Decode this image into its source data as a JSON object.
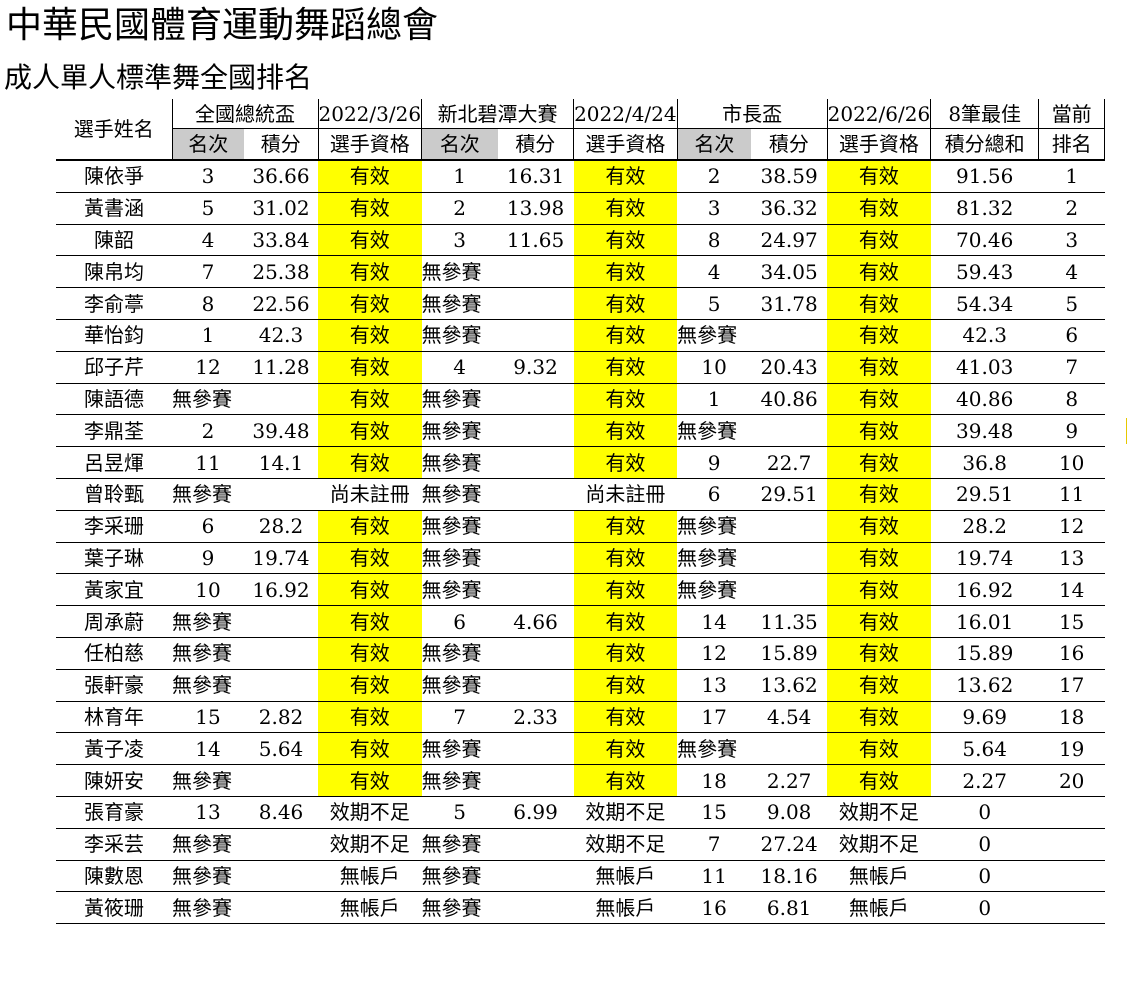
{
  "page": {
    "title": "中華民國體育運動舞蹈總會",
    "subtitle": "成人單人標準舞全國排名"
  },
  "headers": {
    "player_name": "選手姓名",
    "event1_name": "全國總統盃",
    "event1_date": "2022/3/26",
    "event2_name": "新北碧潭大賽",
    "event2_date": "2022/4/24",
    "event3_name": "市長盃",
    "event3_date": "2022/6/26",
    "best8": "8筆最佳",
    "current": "當前",
    "rank": "名次",
    "points": "積分",
    "eligibility": "選手資格",
    "total": "積分總和",
    "ranking": "排名"
  },
  "rows": [
    {
      "name": "陳依爭",
      "e1_rank": "3",
      "e1_pts": "36.66",
      "e1_status": "有效",
      "e2_rank": "1",
      "e2_pts": "16.31",
      "e2_status": "有效",
      "e3_rank": "2",
      "e3_pts": "38.59",
      "e3_status": "有效",
      "total": "91.56",
      "pos": "1"
    },
    {
      "name": "黃書涵",
      "e1_rank": "5",
      "e1_pts": "31.02",
      "e1_status": "有效",
      "e2_rank": "2",
      "e2_pts": "13.98",
      "e2_status": "有效",
      "e3_rank": "3",
      "e3_pts": "36.32",
      "e3_status": "有效",
      "total": "81.32",
      "pos": "2"
    },
    {
      "name": "陳韶",
      "e1_rank": "4",
      "e1_pts": "33.84",
      "e1_status": "有效",
      "e2_rank": "3",
      "e2_pts": "11.65",
      "e2_status": "有效",
      "e3_rank": "8",
      "e3_pts": "24.97",
      "e3_status": "有效",
      "total": "70.46",
      "pos": "3"
    },
    {
      "name": "陳帛均",
      "e1_rank": "7",
      "e1_pts": "25.38",
      "e1_status": "有效",
      "e2_rank": "無參賽",
      "e2_pts": "",
      "e2_status": "有效",
      "e3_rank": "4",
      "e3_pts": "34.05",
      "e3_status": "有效",
      "total": "59.43",
      "pos": "4"
    },
    {
      "name": "李俞葶",
      "e1_rank": "8",
      "e1_pts": "22.56",
      "e1_status": "有效",
      "e2_rank": "無參賽",
      "e2_pts": "",
      "e2_status": "有效",
      "e3_rank": "5",
      "e3_pts": "31.78",
      "e3_status": "有效",
      "total": "54.34",
      "pos": "5"
    },
    {
      "name": "華怡鈞",
      "e1_rank": "1",
      "e1_pts": "42.3",
      "e1_status": "有效",
      "e2_rank": "無參賽",
      "e2_pts": "",
      "e2_status": "有效",
      "e3_rank": "無參賽",
      "e3_pts": "",
      "e3_status": "有效",
      "total": "42.3",
      "pos": "6"
    },
    {
      "name": "邱子芹",
      "e1_rank": "12",
      "e1_pts": "11.28",
      "e1_status": "有效",
      "e2_rank": "4",
      "e2_pts": "9.32",
      "e2_status": "有效",
      "e3_rank": "10",
      "e3_pts": "20.43",
      "e3_status": "有效",
      "total": "41.03",
      "pos": "7"
    },
    {
      "name": "陳語德",
      "e1_rank": "無參賽",
      "e1_pts": "",
      "e1_status": "有效",
      "e2_rank": "無參賽",
      "e2_pts": "",
      "e2_status": "有效",
      "e3_rank": "1",
      "e3_pts": "40.86",
      "e3_status": "有效",
      "total": "40.86",
      "pos": "8"
    },
    {
      "name": "李鼎荃",
      "e1_rank": "2",
      "e1_pts": "39.48",
      "e1_status": "有效",
      "e2_rank": "無參賽",
      "e2_pts": "",
      "e2_status": "有效",
      "e3_rank": "無參賽",
      "e3_pts": "",
      "e3_status": "有效",
      "total": "39.48",
      "pos": "9"
    },
    {
      "name": "呂昱煇",
      "e1_rank": "11",
      "e1_pts": "14.1",
      "e1_status": "有效",
      "e2_rank": "無參賽",
      "e2_pts": "",
      "e2_status": "有效",
      "e3_rank": "9",
      "e3_pts": "22.7",
      "e3_status": "有效",
      "total": "36.8",
      "pos": "10"
    },
    {
      "name": "曾聆甄",
      "e1_rank": "無參賽",
      "e1_pts": "",
      "e1_status": "尚未註冊",
      "e2_rank": "無參賽",
      "e2_pts": "",
      "e2_status": "尚未註冊",
      "e3_rank": "6",
      "e3_pts": "29.51",
      "e3_status": "有效",
      "total": "29.51",
      "pos": "11"
    },
    {
      "name": "李采珊",
      "e1_rank": "6",
      "e1_pts": "28.2",
      "e1_status": "有效",
      "e2_rank": "無參賽",
      "e2_pts": "",
      "e2_status": "有效",
      "e3_rank": "無參賽",
      "e3_pts": "",
      "e3_status": "有效",
      "total": "28.2",
      "pos": "12"
    },
    {
      "name": "葉子琳",
      "e1_rank": "9",
      "e1_pts": "19.74",
      "e1_status": "有效",
      "e2_rank": "無參賽",
      "e2_pts": "",
      "e2_status": "有效",
      "e3_rank": "無參賽",
      "e3_pts": "",
      "e3_status": "有效",
      "total": "19.74",
      "pos": "13"
    },
    {
      "name": "黃家宜",
      "e1_rank": "10",
      "e1_pts": "16.92",
      "e1_status": "有效",
      "e2_rank": "無參賽",
      "e2_pts": "",
      "e2_status": "有效",
      "e3_rank": "無參賽",
      "e3_pts": "",
      "e3_status": "有效",
      "total": "16.92",
      "pos": "14"
    },
    {
      "name": "周承蔚",
      "e1_rank": "無參賽",
      "e1_pts": "",
      "e1_status": "有效",
      "e2_rank": "6",
      "e2_pts": "4.66",
      "e2_status": "有效",
      "e3_rank": "14",
      "e3_pts": "11.35",
      "e3_status": "有效",
      "total": "16.01",
      "pos": "15"
    },
    {
      "name": "任柏慈",
      "e1_rank": "無參賽",
      "e1_pts": "",
      "e1_status": "有效",
      "e2_rank": "無參賽",
      "e2_pts": "",
      "e2_status": "有效",
      "e3_rank": "12",
      "e3_pts": "15.89",
      "e3_status": "有效",
      "total": "15.89",
      "pos": "16"
    },
    {
      "name": "張軒豪",
      "e1_rank": "無參賽",
      "e1_pts": "",
      "e1_status": "有效",
      "e2_rank": "無參賽",
      "e2_pts": "",
      "e2_status": "有效",
      "e3_rank": "13",
      "e3_pts": "13.62",
      "e3_status": "有效",
      "total": "13.62",
      "pos": "17"
    },
    {
      "name": "林育年",
      "e1_rank": "15",
      "e1_pts": "2.82",
      "e1_status": "有效",
      "e2_rank": "7",
      "e2_pts": "2.33",
      "e2_status": "有效",
      "e3_rank": "17",
      "e3_pts": "4.54",
      "e3_status": "有效",
      "total": "9.69",
      "pos": "18"
    },
    {
      "name": "黃子凌",
      "e1_rank": "14",
      "e1_pts": "5.64",
      "e1_status": "有效",
      "e2_rank": "無參賽",
      "e2_pts": "",
      "e2_status": "有效",
      "e3_rank": "無參賽",
      "e3_pts": "",
      "e3_status": "有效",
      "total": "5.64",
      "pos": "19"
    },
    {
      "name": "陳妍安",
      "e1_rank": "無參賽",
      "e1_pts": "",
      "e1_status": "有效",
      "e2_rank": "無參賽",
      "e2_pts": "",
      "e2_status": "有效",
      "e3_rank": "18",
      "e3_pts": "2.27",
      "e3_status": "有效",
      "total": "2.27",
      "pos": "20"
    },
    {
      "name": "張育豪",
      "e1_rank": "13",
      "e1_pts": "8.46",
      "e1_status": "效期不足",
      "e2_rank": "5",
      "e2_pts": "6.99",
      "e2_status": "效期不足",
      "e3_rank": "15",
      "e3_pts": "9.08",
      "e3_status": "效期不足",
      "total": "0",
      "pos": ""
    },
    {
      "name": "李采芸",
      "e1_rank": "無參賽",
      "e1_pts": "",
      "e1_status": "效期不足",
      "e2_rank": "無參賽",
      "e2_pts": "",
      "e2_status": "效期不足",
      "e3_rank": "7",
      "e3_pts": "27.24",
      "e3_status": "效期不足",
      "total": "0",
      "pos": ""
    },
    {
      "name": "陳數恩",
      "e1_rank": "無參賽",
      "e1_pts": "",
      "e1_status": "無帳戶",
      "e2_rank": "無參賽",
      "e2_pts": "",
      "e2_status": "無帳戶",
      "e3_rank": "11",
      "e3_pts": "18.16",
      "e3_status": "無帳戶",
      "total": "0",
      "pos": ""
    },
    {
      "name": "黃筱珊",
      "e1_rank": "無參賽",
      "e1_pts": "",
      "e1_status": "無帳戶",
      "e2_rank": "無參賽",
      "e2_pts": "",
      "e2_status": "無帳戶",
      "e3_rank": "16",
      "e3_pts": "6.81",
      "e3_status": "無帳戶",
      "total": "0",
      "pos": ""
    }
  ],
  "colors": {
    "valid_highlight": "#ffff00",
    "header_gray": "#cbcbcb"
  },
  "highlight_status": "有效"
}
